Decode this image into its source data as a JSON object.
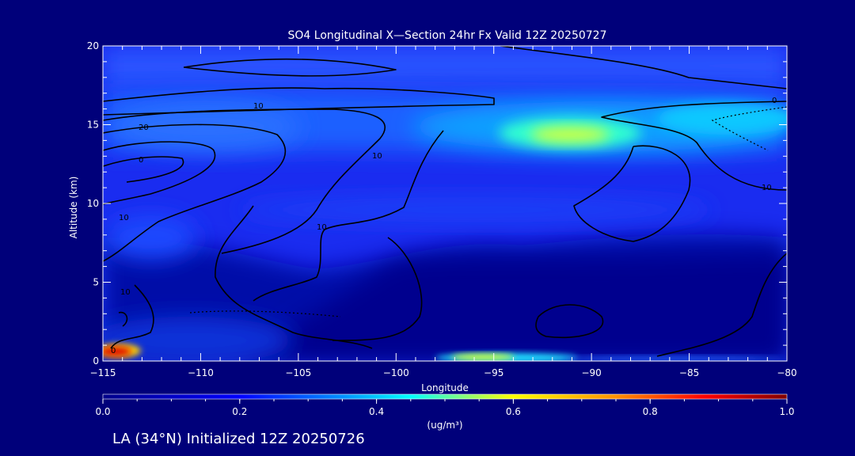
{
  "chart_data": {
    "type": "heatmap",
    "title": "SO4 Longitudinal X—Section 24hr  Fx Valid 12Z 20250727",
    "xlabel": "Longitude",
    "ylabel": "Altitude (km)",
    "xlim": [
      -115,
      -80
    ],
    "ylim": [
      0,
      20
    ],
    "x_ticks": [
      -115,
      -110,
      -105,
      -100,
      -95,
      -90,
      -85,
      -80
    ],
    "x_tick_labels": [
      "−115",
      "−110",
      "−105",
      "−100",
      "−95",
      "−90",
      "−85",
      "−80"
    ],
    "y_ticks": [
      0,
      5,
      10,
      15,
      20
    ],
    "y_tick_labels": [
      "0",
      "5",
      "10",
      "15",
      "20"
    ],
    "colorbar": {
      "min": 0.0,
      "max": 1.0,
      "ticks": [
        0.0,
        0.2,
        0.4,
        0.6,
        0.8,
        1.0
      ],
      "tick_labels": [
        "0.0",
        "0.2",
        "0.4",
        "0.6",
        "0.8",
        "1.0"
      ],
      "unit_label": "(ug/m³)"
    },
    "concentration_features": [
      {
        "feature": "upper-level plume",
        "lon_min": -98,
        "lon_max": -80,
        "alt_min": 13,
        "alt_max": 16,
        "peak_lon": -91,
        "peak_alt": 14.3,
        "peak_value": 0.55
      },
      {
        "feature": "upper layer west",
        "lon_min": -115,
        "lon_max": -100,
        "alt_min": 14,
        "alt_max": 17,
        "peak_lon": -108,
        "peak_alt": 15.5,
        "peak_value": 0.3
      },
      {
        "feature": "surface source LA",
        "lon_min": -115,
        "lon_max": -113.5,
        "alt_min": 0,
        "alt_max": 0.8,
        "peak_lon": -114.6,
        "peak_alt": 0.4,
        "peak_value": 1.0
      },
      {
        "feature": "surface band",
        "lon_min": -97.5,
        "lon_max": -89,
        "alt_min": 0,
        "alt_max": 0.5,
        "peak_lon": -95,
        "peak_alt": 0.2,
        "peak_value": 0.55
      },
      {
        "feature": "mid layer",
        "lon_min": -97,
        "lon_max": -80,
        "alt_min": 8.5,
        "alt_max": 10.5,
        "peak_lon": -94,
        "peak_alt": 9.5,
        "peak_value": 0.2
      }
    ],
    "contour_labels": [
      "10",
      "20",
      "10",
      "0",
      "10",
      "10",
      "10",
      "0",
      "10",
      "0"
    ]
  },
  "footer": {
    "info": "LA (34°N) Initialized 12Z 20250726"
  }
}
